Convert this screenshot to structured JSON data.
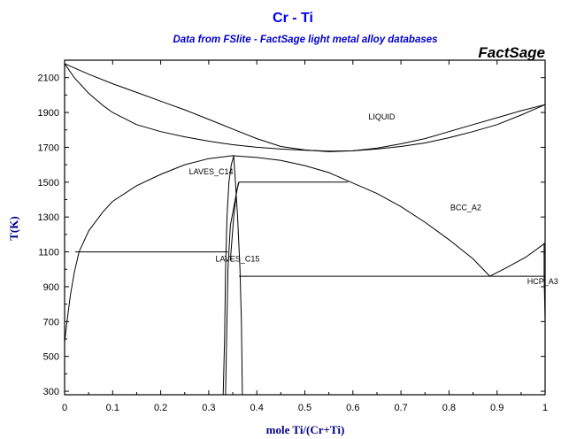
{
  "chart_data": {
    "type": "line",
    "title": "Cr - Ti",
    "subtitle": "Data from FSlite - FactSage light metal alloy databases",
    "brand": "FactSage",
    "xlabel": "mole Ti/(Cr+Ti)",
    "ylabel": "T(K)",
    "xlim": [
      0,
      1
    ],
    "ylim": [
      280,
      2200
    ],
    "xticks": [
      0,
      0.1,
      0.2,
      0.3,
      0.4,
      0.5,
      0.6,
      0.7,
      0.8,
      0.9,
      1
    ],
    "xtick_labels": [
      "0",
      "0.1",
      "0.2",
      "0.3",
      "0.4",
      "0.5",
      "0.6",
      "0.7",
      "0.8",
      "0.9",
      "1"
    ],
    "yticks": [
      300,
      500,
      700,
      900,
      1100,
      1300,
      1500,
      1700,
      1900,
      2100
    ],
    "ytick_labels": [
      "300",
      "500",
      "700",
      "900",
      "1100",
      "1300",
      "1500",
      "1700",
      "1900",
      "2100"
    ],
    "grid": false,
    "phase_labels": [
      {
        "text": "LIQUID",
        "x": 0.66,
        "y": 1860
      },
      {
        "text": "LAVES_C14",
        "x": 0.305,
        "y": 1545
      },
      {
        "text": "BCC_A2",
        "x": 0.835,
        "y": 1340
      },
      {
        "text": "LAVES_C15",
        "x": 0.36,
        "y": 1045
      },
      {
        "text": "HCP_A3",
        "x": 0.995,
        "y": 915
      }
    ],
    "series": [
      {
        "points": [
          [
            0,
            2180
          ],
          [
            0.05,
            2120
          ],
          [
            0.1,
            2065
          ],
          [
            0.15,
            2015
          ],
          [
            0.2,
            1965
          ],
          [
            0.25,
            1915
          ],
          [
            0.3,
            1860
          ],
          [
            0.35,
            1805
          ],
          [
            0.4,
            1750
          ],
          [
            0.45,
            1705
          ],
          [
            0.5,
            1685
          ],
          [
            0.55,
            1675
          ],
          [
            0.6,
            1680
          ],
          [
            0.65,
            1695
          ],
          [
            0.7,
            1720
          ],
          [
            0.75,
            1750
          ],
          [
            0.8,
            1790
          ],
          [
            0.85,
            1830
          ],
          [
            0.9,
            1870
          ],
          [
            0.95,
            1910
          ],
          [
            1,
            1945
          ]
        ]
      },
      {
        "points": [
          [
            0,
            2180
          ],
          [
            0.02,
            2100
          ],
          [
            0.05,
            2010
          ],
          [
            0.08,
            1940
          ],
          [
            0.1,
            1900
          ],
          [
            0.15,
            1830
          ],
          [
            0.2,
            1790
          ],
          [
            0.25,
            1760
          ],
          [
            0.3,
            1735
          ],
          [
            0.35,
            1715
          ],
          [
            0.4,
            1700
          ],
          [
            0.45,
            1690
          ],
          [
            0.5,
            1683
          ],
          [
            0.55,
            1678
          ],
          [
            0.6,
            1680
          ],
          [
            0.65,
            1690
          ],
          [
            0.7,
            1705
          ],
          [
            0.75,
            1725
          ],
          [
            0.8,
            1755
          ],
          [
            0.85,
            1790
          ],
          [
            0.9,
            1830
          ],
          [
            0.95,
            1885
          ],
          [
            1,
            1945
          ]
        ]
      },
      {
        "points": [
          [
            0,
            580
          ],
          [
            0.005,
            700
          ],
          [
            0.012,
            850
          ],
          [
            0.02,
            980
          ],
          [
            0.03,
            1100
          ],
          [
            0.05,
            1220
          ],
          [
            0.08,
            1330
          ],
          [
            0.1,
            1390
          ],
          [
            0.15,
            1480
          ],
          [
            0.2,
            1545
          ],
          [
            0.25,
            1600
          ],
          [
            0.3,
            1635
          ],
          [
            0.35,
            1652
          ],
          [
            0.37,
            1648
          ],
          [
            0.4,
            1642
          ],
          [
            0.45,
            1625
          ],
          [
            0.5,
            1595
          ],
          [
            0.55,
            1555
          ],
          [
            0.6,
            1495
          ],
          [
            0.65,
            1435
          ],
          [
            0.7,
            1360
          ],
          [
            0.75,
            1270
          ],
          [
            0.8,
            1170
          ],
          [
            0.85,
            1060
          ],
          [
            0.885,
            960
          ]
        ]
      },
      {
        "points": [
          [
            0.33,
            280
          ],
          [
            0.333,
            600
          ],
          [
            0.335,
            1000
          ],
          [
            0.338,
            1300
          ],
          [
            0.342,
            1500
          ],
          [
            0.347,
            1600
          ],
          [
            0.352,
            1650
          ]
        ]
      },
      {
        "points": [
          [
            0.352,
            1650
          ],
          [
            0.355,
            1520
          ],
          [
            0.36,
            1300
          ],
          [
            0.365,
            1000
          ],
          [
            0.368,
            700
          ],
          [
            0.37,
            280
          ]
        ]
      },
      {
        "points": [
          [
            0.335,
            280
          ],
          [
            0.34,
            1000
          ],
          [
            0.345,
            1250
          ],
          [
            0.355,
            1400
          ],
          [
            0.362,
            1500
          ]
        ]
      },
      {
        "points": [
          [
            0.345,
            1050
          ],
          [
            0.352,
            1300
          ],
          [
            0.358,
            1450
          ],
          [
            0.363,
            1500
          ]
        ]
      },
      {
        "points": [
          [
            0.022,
            1100
          ],
          [
            0.34,
            1100
          ]
        ]
      },
      {
        "points": [
          [
            0.363,
            1500
          ],
          [
            0.59,
            1500
          ]
        ]
      },
      {
        "points": [
          [
            0.363,
            960
          ],
          [
            1,
            960
          ]
        ]
      },
      {
        "points": [
          [
            0.885,
            960
          ],
          [
            0.92,
            1010
          ],
          [
            0.96,
            1070
          ],
          [
            1,
            1150
          ]
        ]
      },
      {
        "points": [
          [
            0.998,
            1150
          ],
          [
            0.998,
            960
          ],
          [
            1,
            700
          ]
        ]
      }
    ]
  }
}
